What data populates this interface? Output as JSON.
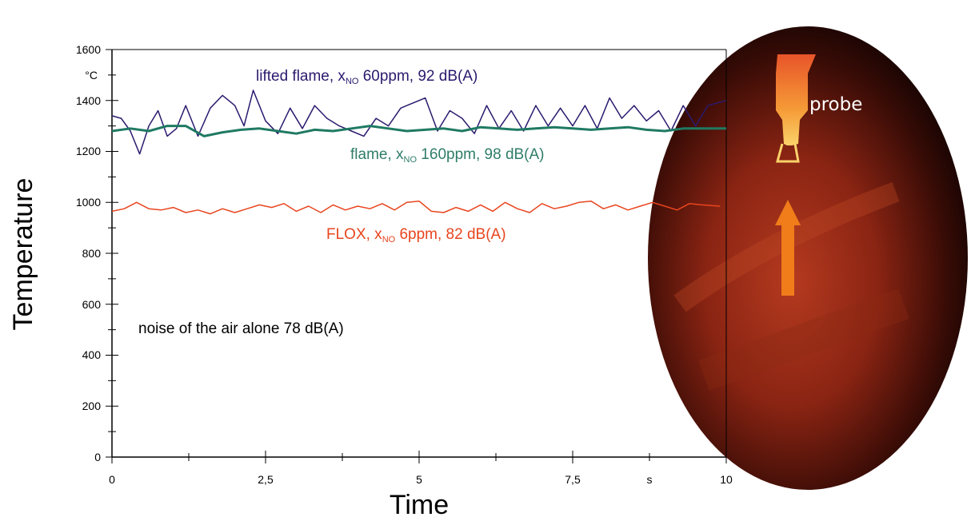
{
  "chart_data": {
    "type": "line",
    "xlabel": "Time",
    "ylabel": "Temperature",
    "x_unit": "s",
    "y_unit": "°C",
    "xlim": [
      0,
      10
    ],
    "ylim": [
      0,
      1600
    ],
    "x_ticks": [
      "0",
      "2,5",
      "5",
      "7,5",
      "10"
    ],
    "y_ticks": [
      "0",
      "200",
      "400",
      "600",
      "800",
      "1000",
      "1200",
      "1400",
      "1600"
    ],
    "grid": false,
    "series": [
      {
        "key": "lifted",
        "label": {
          "pre": "lifted flame, x",
          "sub": "NO",
          "post": " 60ppm, 92 dB(A)"
        },
        "color": "#2b1a6e",
        "x": [
          0,
          0.15,
          0.3,
          0.45,
          0.6,
          0.75,
          0.9,
          1.05,
          1.2,
          1.4,
          1.6,
          1.8,
          2.0,
          2.15,
          2.3,
          2.5,
          2.7,
          2.9,
          3.1,
          3.3,
          3.5,
          3.7,
          3.9,
          4.1,
          4.3,
          4.5,
          4.7,
          4.9,
          5.1,
          5.3,
          5.5,
          5.7,
          5.9,
          6.1,
          6.3,
          6.5,
          6.7,
          6.9,
          7.1,
          7.3,
          7.5,
          7.7,
          7.9,
          8.1,
          8.3,
          8.5,
          8.7,
          8.9,
          9.1,
          9.3,
          9.5,
          9.7,
          10.0
        ],
        "values": [
          1340,
          1330,
          1280,
          1190,
          1300,
          1360,
          1260,
          1290,
          1380,
          1260,
          1370,
          1420,
          1380,
          1300,
          1440,
          1320,
          1270,
          1370,
          1290,
          1380,
          1330,
          1300,
          1280,
          1260,
          1330,
          1300,
          1370,
          1390,
          1410,
          1280,
          1360,
          1330,
          1270,
          1380,
          1290,
          1360,
          1280,
          1380,
          1300,
          1370,
          1300,
          1380,
          1290,
          1410,
          1330,
          1380,
          1320,
          1360,
          1280,
          1380,
          1300,
          1380,
          1400
        ]
      },
      {
        "key": "flame",
        "label": {
          "pre": "flame, x",
          "sub": "NO",
          "post": " 160ppm, 98 dB(A)"
        },
        "color": "#1f7a62",
        "x": [
          0,
          0.3,
          0.6,
          0.9,
          1.2,
          1.5,
          1.8,
          2.1,
          2.4,
          2.7,
          3.0,
          3.3,
          3.6,
          3.9,
          4.2,
          4.5,
          4.8,
          5.1,
          5.4,
          5.7,
          6.0,
          6.3,
          6.6,
          6.9,
          7.2,
          7.5,
          7.8,
          8.1,
          8.4,
          8.7,
          9.0,
          9.3,
          9.6,
          10.0
        ],
        "values": [
          1280,
          1290,
          1280,
          1300,
          1300,
          1260,
          1275,
          1285,
          1290,
          1280,
          1270,
          1285,
          1280,
          1290,
          1300,
          1290,
          1280,
          1285,
          1290,
          1280,
          1295,
          1290,
          1285,
          1290,
          1295,
          1290,
          1285,
          1290,
          1295,
          1285,
          1280,
          1290,
          1290,
          1290
        ]
      },
      {
        "key": "flox",
        "label": {
          "pre": "FLOX, x",
          "sub": "NO",
          "post": " 6ppm, 82 dB(A)"
        },
        "color": "#e8451e",
        "x": [
          0,
          0.2,
          0.4,
          0.6,
          0.8,
          1.0,
          1.2,
          1.4,
          1.6,
          1.8,
          2.0,
          2.2,
          2.4,
          2.6,
          2.8,
          3.0,
          3.2,
          3.4,
          3.6,
          3.8,
          4.0,
          4.2,
          4.4,
          4.6,
          4.8,
          5.0,
          5.2,
          5.4,
          5.6,
          5.8,
          6.0,
          6.2,
          6.4,
          6.6,
          6.8,
          7.0,
          7.2,
          7.4,
          7.6,
          7.8,
          8.0,
          8.2,
          8.4,
          8.6,
          8.8,
          9.0,
          9.2,
          9.4,
          9.6,
          9.9
        ],
        "values": [
          965,
          975,
          1000,
          975,
          970,
          980,
          960,
          970,
          955,
          975,
          960,
          975,
          990,
          980,
          995,
          965,
          985,
          960,
          990,
          970,
          985,
          975,
          995,
          970,
          1000,
          1005,
          965,
          960,
          980,
          965,
          990,
          965,
          1000,
          975,
          960,
          995,
          975,
          985,
          1000,
          1005,
          975,
          990,
          970,
          985,
          1000,
          985,
          970,
          995,
          990,
          985
        ]
      }
    ],
    "annotations": [
      {
        "key": "noise",
        "text": "noise of the air alone 78 dB(A)"
      }
    ]
  },
  "photo": {
    "label": "probe",
    "background": "#1c0503",
    "glow_color": "#a8321a",
    "probe_color": "#f7a63a",
    "arrow_color": "#f07c1a"
  }
}
